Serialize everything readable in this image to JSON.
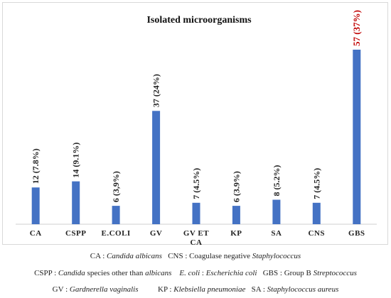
{
  "chart_data": {
    "type": "bar",
    "title": "Isolated microorganisms",
    "categories": [
      "CA",
      "CSPP",
      "E.COLI",
      "GV",
      "GV ET CA",
      "KP",
      "SA",
      "CNS",
      "GBS"
    ],
    "values": [
      12,
      14,
      6,
      37,
      7,
      6,
      8,
      7,
      57
    ],
    "labels": [
      "12 (7.8%)",
      "14 (9.1%)",
      "6 (3,9%)",
      "37 (24%)",
      "7 (4.5%)",
      "6 (3.9%)",
      "8 (5.2%)",
      "7 (4.5%)",
      "57 (37%)"
    ],
    "ylim": [
      0,
      60
    ],
    "grid": false,
    "bar_color": "#4472c4",
    "label_color": "#222222",
    "highlight_label_color": "#c00000"
  },
  "legend": {
    "lines": [
      [
        {
          "text": "CA : ",
          "italic": false
        },
        {
          "text": "Candida albicans",
          "italic": true
        },
        {
          "text": "   CNS : Coagulase negative ",
          "italic": false
        },
        {
          "text": "Staphylococcus",
          "italic": true
        }
      ],
      [
        {
          "text": "CSPP : ",
          "italic": false
        },
        {
          "text": "Candida",
          "italic": true
        },
        {
          "text": " species other than ",
          "italic": false
        },
        {
          "text": "albicans",
          "italic": true
        },
        {
          "text": "    ",
          "italic": false
        },
        {
          "text": "E. coli",
          "italic": true
        },
        {
          "text": " : ",
          "italic": false
        },
        {
          "text": "Escherichia coli",
          "italic": true
        },
        {
          "text": "   GBS : Group B ",
          "italic": false
        },
        {
          "text": "Streptococcus",
          "italic": true
        }
      ],
      [
        {
          "text": "GV : ",
          "italic": false
        },
        {
          "text": "Gardnerella vaginalis",
          "italic": true
        },
        {
          "text": "          KP : ",
          "italic": false
        },
        {
          "text": "Klebsiella pneumoniae",
          "italic": true
        },
        {
          "text": "   SA : ",
          "italic": false
        },
        {
          "text": "Staphylococcus aureus",
          "italic": true
        }
      ]
    ]
  }
}
